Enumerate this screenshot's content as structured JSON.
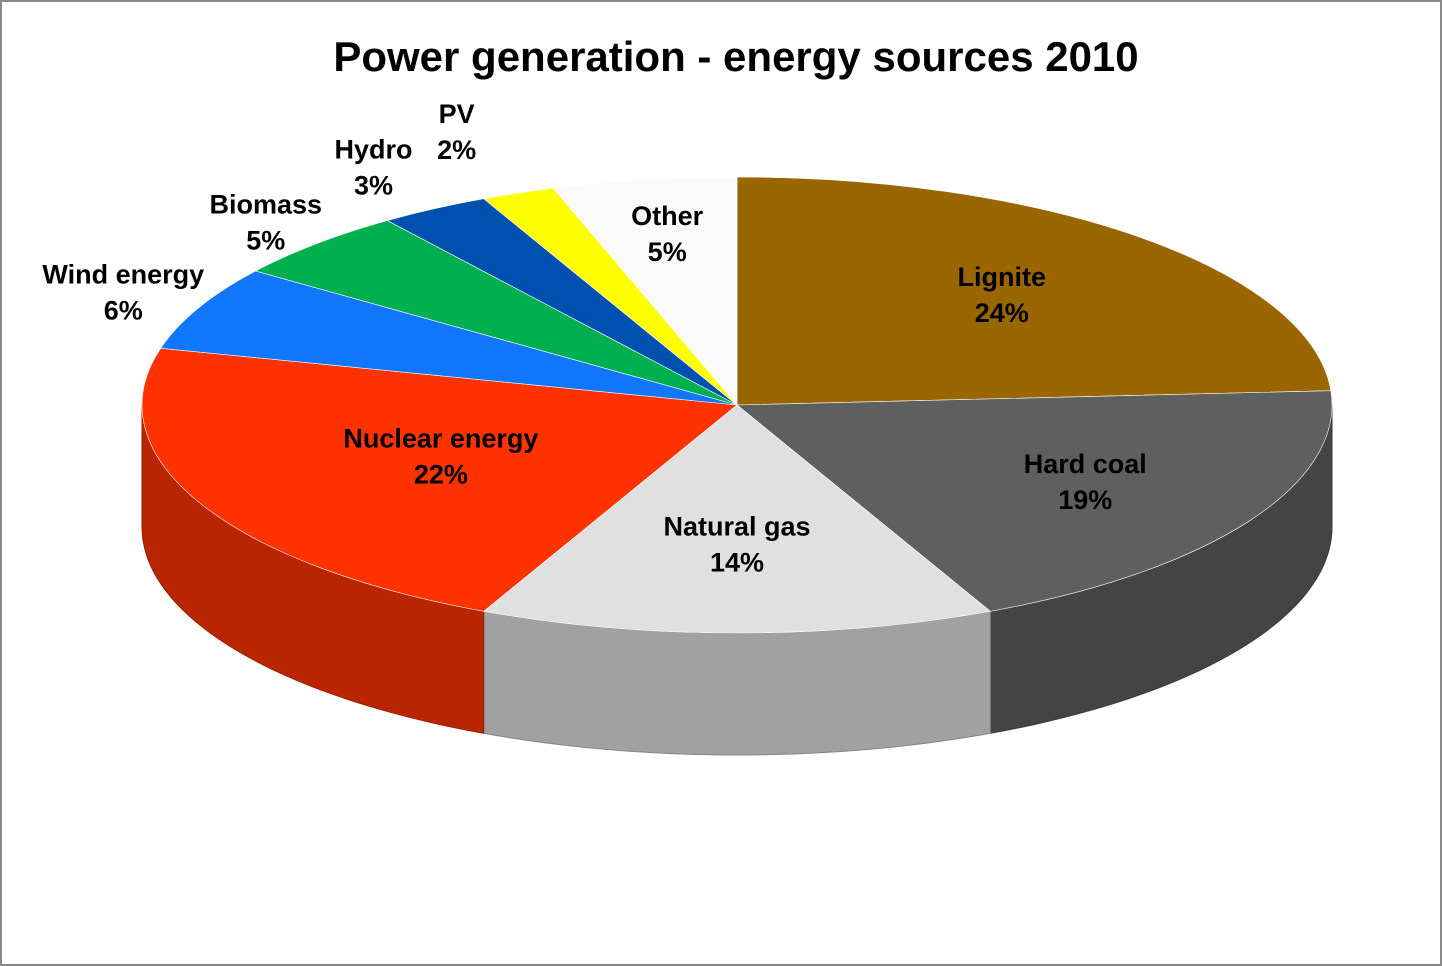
{
  "chart_data": {
    "type": "pie",
    "title": "Power generation - energy sources 2010",
    "categories": [
      "Lignite",
      "Hard coal",
      "Natural gas",
      "Nuclear energy",
      "Wind energy",
      "Biomass",
      "Hydro",
      "PV",
      "Other"
    ],
    "values": [
      24,
      19,
      14,
      22,
      6,
      5,
      3,
      2,
      5
    ],
    "value_labels": [
      "24%",
      "19%",
      "14%",
      "22%",
      "6%",
      "5%",
      "3%",
      "2%",
      "5%"
    ],
    "colors": [
      "#996600",
      "#5f5f5f",
      "#e0e0e0",
      "#ff3300",
      "#1177ff",
      "#00b050",
      "#0050b0",
      "#ffff00",
      "#fafafa"
    ]
  }
}
